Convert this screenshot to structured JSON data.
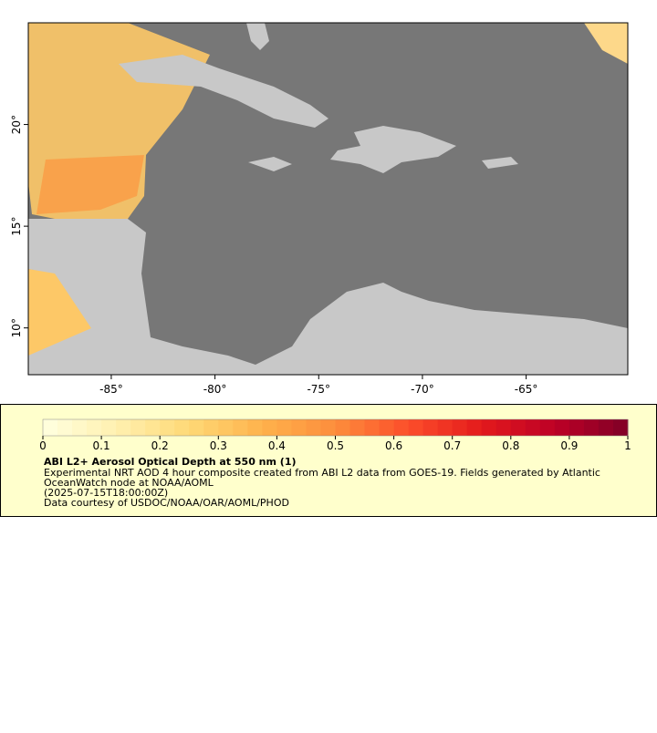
{
  "map": {
    "xlim": [
      -89,
      -60.1
    ],
    "ylim": [
      7.7,
      25
    ],
    "xticks": [
      {
        "value": -85,
        "label": "-85°"
      },
      {
        "value": -80,
        "label": "-80°"
      },
      {
        "value": -75,
        "label": "-75°"
      },
      {
        "value": -70,
        "label": "-70°"
      },
      {
        "value": -65,
        "label": "-65°"
      }
    ],
    "yticks": [
      {
        "value": 20,
        "label": "20°"
      },
      {
        "value": 15,
        "label": "15°"
      },
      {
        "value": 10,
        "label": "10°"
      }
    ]
  },
  "colorbar": {
    "range": [
      0,
      1
    ],
    "ticks": [
      0,
      0.1,
      0.2,
      0.3,
      0.4,
      0.5,
      0.6,
      0.7,
      0.8,
      0.9,
      1
    ],
    "colors": [
      "#ffffe0",
      "#fff0b0",
      "#fed976",
      "#feb24c",
      "#fd8d3c",
      "#fc4e2a",
      "#e31a1c",
      "#bd0026",
      "#800026"
    ]
  },
  "legend": {
    "title": "ABI L2+ Aerosol Optical Depth at 550 nm (1)",
    "lines": [
      "Experimental NRT AOD 4 hour composite created from ABI L2 data from GOES-19. Fields generated by Atlantic",
      "OceanWatch node at NOAA/AOML",
      "(2025-07-15T18:00:00Z)",
      "Data courtesy of USDOC/NOAA/OAR/AOML/PHOD"
    ]
  }
}
